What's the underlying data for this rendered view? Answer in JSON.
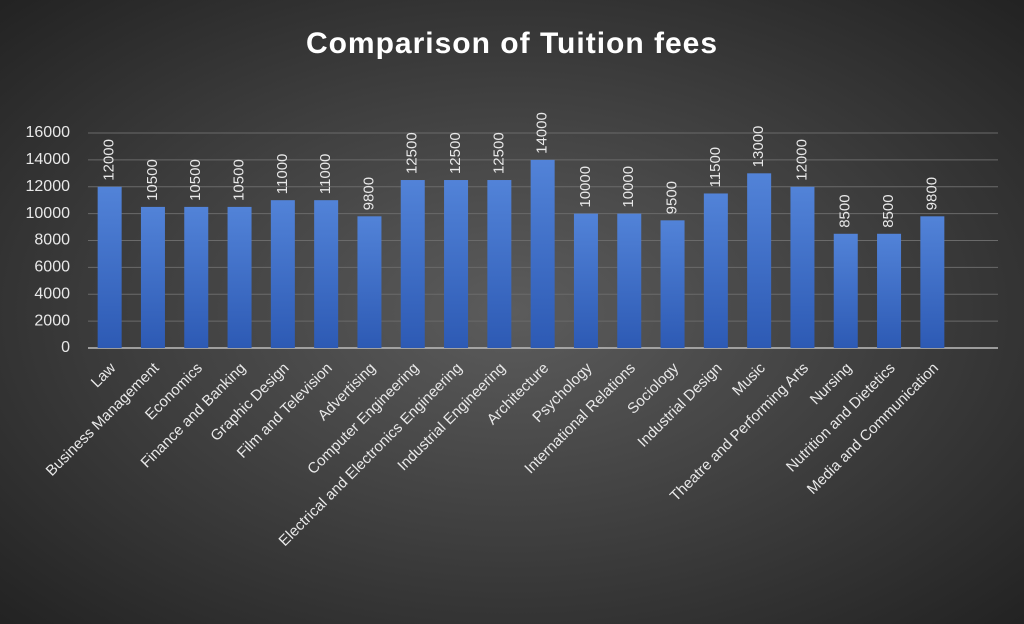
{
  "chart_data": {
    "type": "bar",
    "title": "Comparison of Tuition fees",
    "categories": [
      "Law",
      "Business Management",
      "Economics",
      "Finance and Banking",
      "Graphic Design",
      "Film and Television",
      "Advertising",
      "Computer Engineering",
      "Electrical and Electronics Engineering",
      "Industrial Engineering",
      "Architecture",
      "Psychology",
      "International Relations",
      "Sociology",
      "Industrial Design",
      "Music",
      "Theatre and Performing Arts",
      "Nursing",
      "Nutrition and Dietetics",
      "Media and Communication"
    ],
    "values": [
      12000,
      10500,
      10500,
      10500,
      11000,
      11000,
      9800,
      12500,
      12500,
      12500,
      14000,
      10000,
      10000,
      9500,
      11500,
      13000,
      12000,
      8500,
      8500,
      9800
    ],
    "color": "#4472c4",
    "ylim": [
      0,
      16000
    ],
    "yticks": [
      0,
      2000,
      4000,
      6000,
      8000,
      10000,
      12000,
      14000,
      16000
    ],
    "grid": true
  }
}
